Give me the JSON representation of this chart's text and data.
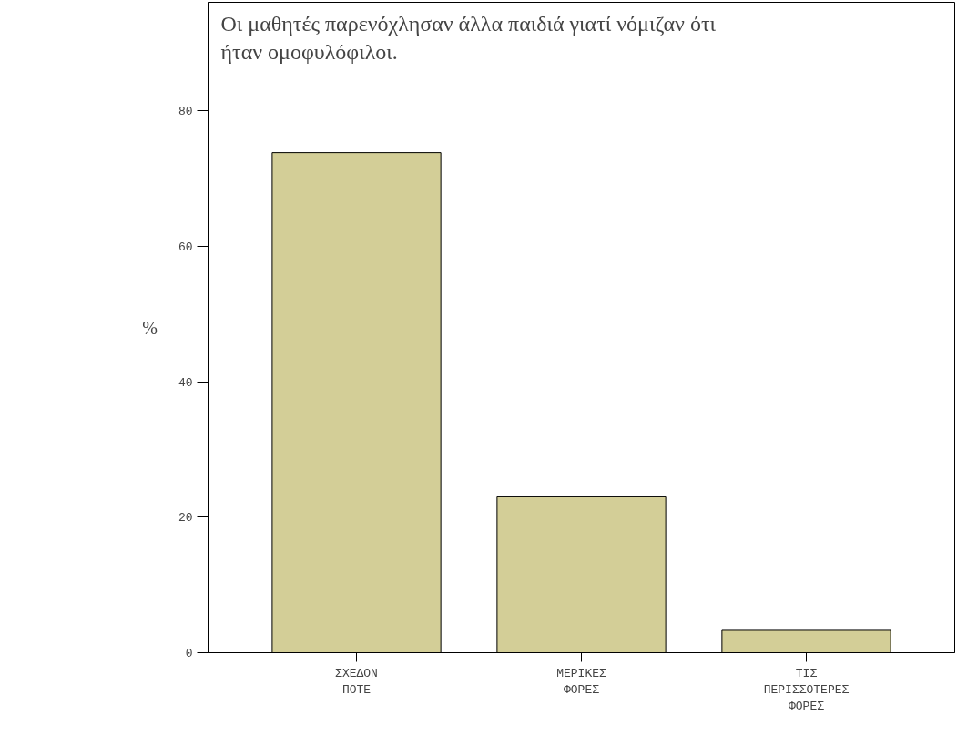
{
  "chart_data": {
    "type": "bar",
    "title": "Οι μαθητές παρενόχλησαν άλλα παιδιά γιατί νόμιζαν ότι ήταν ομοφυλόφιλοι.",
    "ylabel": "%",
    "categories": [
      "ΣΧΕΔΟΝ ΠΟΤΕ",
      "ΜΕΡΙΚΕΣ ΦΟΡΕΣ",
      "ΤΙΣ ΠΕΡΙΣΣΟΤΕΡΕΣ ΦΟΡΕΣ"
    ],
    "values": [
      73.8,
      23.0,
      3.3
    ],
    "color": "#d3ce97",
    "ylim": [
      0,
      96
    ],
    "yticks": [
      0,
      20,
      40,
      60,
      80
    ],
    "grid": false
  }
}
